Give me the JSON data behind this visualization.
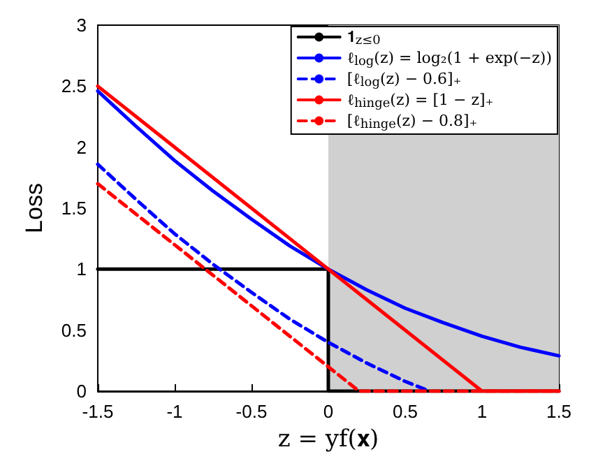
{
  "chart_data": {
    "type": "line",
    "xlabel": "z = yf(𝐱)",
    "ylabel": "Loss",
    "xlim": [
      -1.5,
      1.5
    ],
    "ylim": [
      0,
      3
    ],
    "xticks": [
      -1.5,
      -1,
      -0.5,
      0,
      0.5,
      1,
      1.5
    ],
    "yticks": [
      0,
      0.5,
      1,
      1.5,
      2,
      2.5,
      3
    ],
    "grid": false,
    "legend": "top right",
    "marker": "none",
    "bands": [
      {
        "axis": "x",
        "from": 0,
        "to": 1.5,
        "color": "#d0d0d0"
      }
    ],
    "series": [
      {
        "name": "𝟏$_{z≤0}$",
        "color": "#000000",
        "line_style": "solid",
        "x": [
          -1.5,
          0,
          0,
          1.5
        ],
        "values": [
          1,
          1,
          0,
          0
        ]
      },
      {
        "name": "ℓ$_{log}$(z) = log₂(1 + exp(−z))",
        "color": "#0000ff",
        "line_style": "solid",
        "x": [
          -1.5,
          -1.25,
          -1,
          -0.75,
          -0.5,
          -0.25,
          0,
          0.25,
          0.5,
          0.75,
          1,
          1.25,
          1.5
        ],
        "values": [
          2.46,
          2.17,
          1.89,
          1.64,
          1.41,
          1.19,
          1,
          0.83,
          0.68,
          0.56,
          0.45,
          0.36,
          0.29
        ]
      },
      {
        "name": "[ℓ$_{log}$(z) − 0.6]₊",
        "color": "#0000ff",
        "line_style": "dashed",
        "x": [
          -1.5,
          -1.25,
          -1,
          -0.75,
          -0.5,
          -0.25,
          0,
          0.25,
          0.5,
          0.66
        ],
        "values": [
          1.86,
          1.57,
          1.29,
          1.04,
          0.81,
          0.59,
          0.4,
          0.23,
          0.08,
          0
        ]
      },
      {
        "name": "ℓ$_{hinge}$(z) = [1 − z]₊",
        "color": "#ff0000",
        "line_style": "solid",
        "x": [
          -1.5,
          1,
          1.5
        ],
        "values": [
          2.5,
          0,
          0
        ]
      },
      {
        "name": "[ℓ$_{hinge}$(z) − 0.8]₊",
        "color": "#ff0000",
        "line_style": "dashed",
        "x": [
          -1.5,
          0.2,
          1.5
        ],
        "values": [
          1.7,
          0,
          0
        ]
      }
    ]
  }
}
